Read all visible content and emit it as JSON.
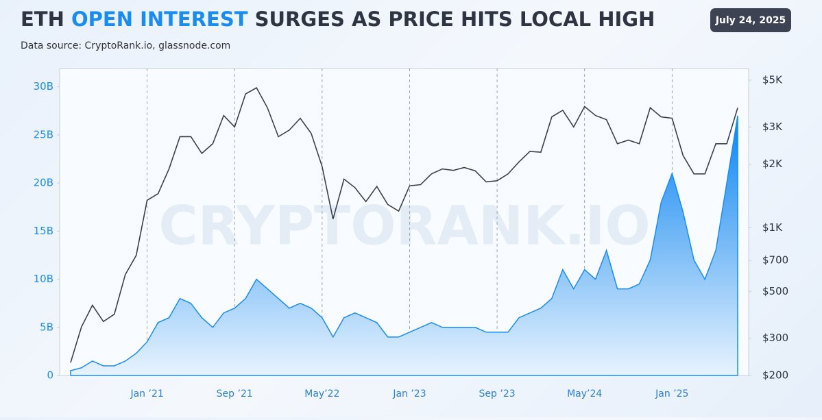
{
  "chart_data": {
    "type": "area-line",
    "title_parts": [
      "ETH",
      "OPEN INTEREST",
      "SURGES AS PRICE HITS LOCAL HIGH"
    ],
    "subtitle": "Data source: CryptoRank.io, glassnode.com",
    "date_badge": "July 24, 2025",
    "watermark": "CRYPTORANK.IO",
    "x": [
      "2020-06",
      "2020-07",
      "2020-08",
      "2020-09",
      "2020-10",
      "2020-11",
      "2020-12",
      "2021-01",
      "2021-02",
      "2021-03",
      "2021-04",
      "2021-05",
      "2021-06",
      "2021-07",
      "2021-08",
      "2021-09",
      "2021-10",
      "2021-11",
      "2021-12",
      "2022-01",
      "2022-02",
      "2022-03",
      "2022-04",
      "2022-05",
      "2022-06",
      "2022-07",
      "2022-08",
      "2022-09",
      "2022-10",
      "2022-11",
      "2022-12",
      "2023-01",
      "2023-02",
      "2023-03",
      "2023-04",
      "2023-05",
      "2023-06",
      "2023-07",
      "2023-08",
      "2023-09",
      "2023-10",
      "2023-11",
      "2023-12",
      "2024-01",
      "2024-02",
      "2024-03",
      "2024-04",
      "2024-05",
      "2024-06",
      "2024-07",
      "2024-08",
      "2024-09",
      "2024-10",
      "2024-11",
      "2024-12",
      "2025-01",
      "2025-02",
      "2025-03",
      "2025-04",
      "2025-05",
      "2025-06",
      "2025-07"
    ],
    "series": [
      {
        "type": "area",
        "color": "#1a8cf0",
        "values": [
          0.5,
          0.8,
          1.5,
          1.0,
          1.0,
          1.5,
          2.3,
          3.5,
          5.5,
          6,
          8,
          7.5,
          6,
          5,
          6.5,
          7,
          8,
          10,
          9,
          8,
          7,
          7.5,
          7,
          6,
          4,
          6,
          6.5,
          6,
          5.5,
          4,
          4,
          4.5,
          5,
          5.5,
          5,
          5,
          5,
          5,
          4.5,
          4.5,
          4.5,
          6,
          6.5,
          7,
          8,
          11,
          9,
          11,
          10,
          13,
          9,
          9,
          9.5,
          12,
          18,
          21,
          17,
          12,
          10,
          13,
          20,
          27
        ]
      },
      {
        "type": "line",
        "color": "#3b404b",
        "axis": "y2",
        "values": [
          230,
          340,
          430,
          360,
          390,
          600,
          740,
          1350,
          1450,
          1900,
          2700,
          2700,
          2250,
          2500,
          3400,
          3000,
          4300,
          4600,
          3700,
          2700,
          2900,
          3300,
          2800,
          1950,
          1100,
          1700,
          1550,
          1330,
          1570,
          1290,
          1200,
          1580,
          1600,
          1800,
          1900,
          1870,
          1930,
          1860,
          1650,
          1670,
          1800,
          2050,
          2300,
          2280,
          3350,
          3600,
          3000,
          3750,
          3400,
          3250,
          2500,
          2600,
          2500,
          3700,
          3350,
          3300,
          2200,
          1800,
          1800,
          2500,
          2500,
          3700
        ]
      }
    ],
    "xlim": [
      "2020-05",
      "2025-08"
    ],
    "xticks": [
      {
        "value": "2021-01",
        "label": "Jan ’21"
      },
      {
        "value": "2021-09",
        "label": "Sep ’21"
      },
      {
        "value": "2022-05",
        "label": "May’22"
      },
      {
        "value": "2023-01",
        "label": "Jan ’23"
      },
      {
        "value": "2023-09",
        "label": "Sep ’23"
      },
      {
        "value": "2024-05",
        "label": "May’24"
      },
      {
        "value": "2025-01",
        "label": "Jan ’25"
      }
    ],
    "ylim": [
      0,
      31.9
    ],
    "yticks": [
      0,
      {
        "value": 5,
        "label": "5B"
      },
      {
        "value": 10,
        "label": "10B"
      },
      {
        "value": 15,
        "label": "15B"
      },
      {
        "value": 20,
        "label": "20B"
      },
      {
        "value": 25,
        "label": "25B"
      },
      {
        "value": 30,
        "label": "30B"
      }
    ],
    "y2lim": [
      200,
      5675
    ],
    "y2log": true,
    "y2ticks": [
      {
        "value": 200,
        "label": "$200"
      },
      {
        "value": 300,
        "label": "$300"
      },
      {
        "value": 500,
        "label": "$500"
      },
      {
        "value": 700,
        "label": "$700"
      },
      {
        "value": 1000,
        "label": "$1K"
      },
      {
        "value": 2000,
        "label": "$2K"
      },
      {
        "value": 3000,
        "label": "$3K"
      },
      {
        "value": 5000,
        "label": "$5K"
      }
    ],
    "xgrid": true
  }
}
